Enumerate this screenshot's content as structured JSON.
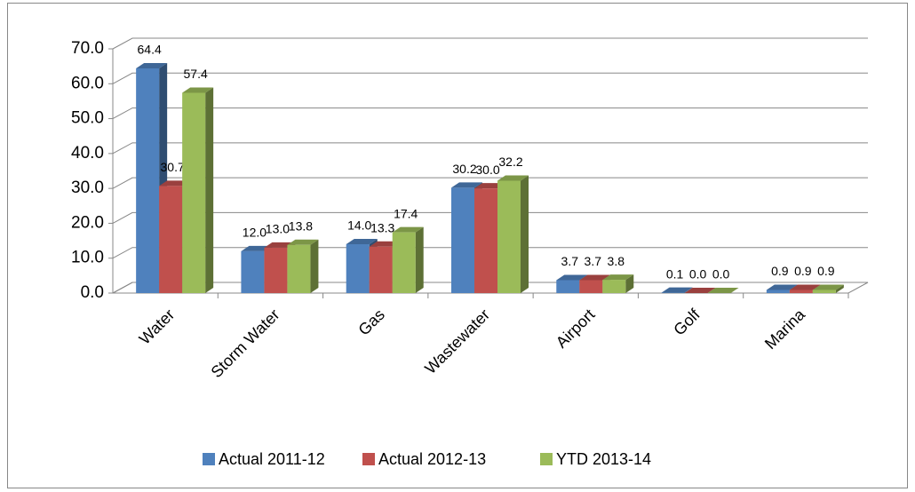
{
  "chart_data": {
    "type": "bar3d",
    "categories": [
      "Water",
      "Storm Water",
      "Gas",
      "Wastewater",
      "Airport",
      "Golf",
      "Marina"
    ],
    "series": [
      {
        "name": "Actual 2011-12",
        "color": "#4f81bd",
        "values": [
          64.4,
          12.0,
          14.0,
          30.2,
          3.7,
          0.1,
          0.9
        ],
        "value_labels": [
          "64.4",
          "12.0",
          "14.0",
          "30.2",
          "3.7",
          "0.1",
          "0.9"
        ]
      },
      {
        "name": "Actual 2012-13",
        "color": "#c0504d",
        "values": [
          30.7,
          13.0,
          13.3,
          30.0,
          3.7,
          0.0,
          0.9
        ],
        "value_labels": [
          "30.7",
          "13.0",
          "13.3",
          "30.0",
          "3.7",
          "0.0",
          "0.9"
        ]
      },
      {
        "name": "YTD 2013-14",
        "color": "#9bbb59",
        "values": [
          57.4,
          13.8,
          17.4,
          32.2,
          3.8,
          0.0,
          0.9
        ],
        "value_labels": [
          "57.4",
          "13.8",
          "17.4",
          "32.2",
          "3.8",
          "0.0",
          "0.9"
        ]
      }
    ],
    "ylim": [
      0,
      70
    ],
    "yticks": [
      {
        "value": 0,
        "label": "0.0"
      },
      {
        "value": 10,
        "label": "10.0"
      },
      {
        "value": 20,
        "label": "20.0"
      },
      {
        "value": 30,
        "label": "30.0"
      },
      {
        "value": 40,
        "label": "40.0"
      },
      {
        "value": 50,
        "label": "50.0"
      },
      {
        "value": 60,
        "label": "60.0"
      },
      {
        "value": 70,
        "label": "70.0"
      }
    ],
    "grid": true,
    "legend": "bottom"
  }
}
